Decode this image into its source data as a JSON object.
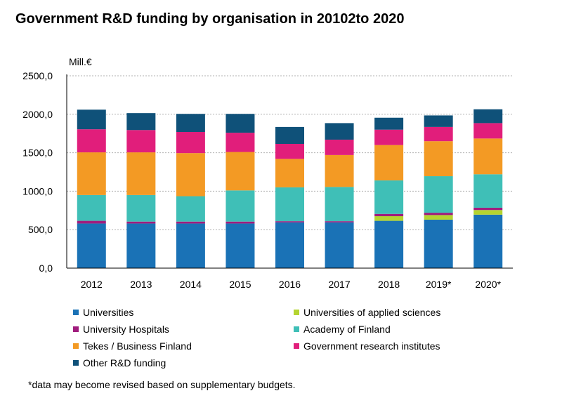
{
  "chart_data": {
    "type": "bar",
    "stacked": true,
    "title": "Government R&D funding by organisation in 20102to 2020",
    "ylabel": "Mill.€",
    "xlabel": "",
    "ylim": [
      0,
      2500
    ],
    "yticks": [
      0,
      500,
      1000,
      1500,
      2000,
      2500
    ],
    "ytick_labels": [
      "0,0",
      "500,0",
      "1000,0",
      "1500,0",
      "2000,0",
      "2500,0"
    ],
    "grid": true,
    "legend_position": "bottom",
    "categories": [
      "2012",
      "2013",
      "2014",
      "2015",
      "2016",
      "2017",
      "2018",
      "2019*",
      "2020*"
    ],
    "series": [
      {
        "name": "Universities",
        "color": "#1a72b6",
        "values": [
          580,
          580,
          580,
          580,
          595,
          595,
          615,
          630,
          695
        ]
      },
      {
        "name": "Universities of applied sciences",
        "color": "#b4d430",
        "values": [
          0,
          0,
          0,
          0,
          0,
          0,
          60,
          60,
          60
        ]
      },
      {
        "name": "University Hospitals",
        "color": "#a01c7d",
        "values": [
          35,
          25,
          25,
          25,
          15,
          15,
          30,
          30,
          30
        ]
      },
      {
        "name": "Academy of Finland",
        "color": "#3fbfb7",
        "values": [
          335,
          345,
          330,
          405,
          440,
          445,
          435,
          475,
          435
        ]
      },
      {
        "name": "Tekes / Business Finland",
        "color": "#f39a24",
        "values": [
          555,
          555,
          560,
          500,
          370,
          415,
          460,
          455,
          465
        ]
      },
      {
        "name": "Government research institutes",
        "color": "#e11e7b",
        "values": [
          300,
          290,
          275,
          250,
          195,
          200,
          200,
          185,
          200
        ]
      },
      {
        "name": "Other R&D funding",
        "color": "#0f5179",
        "values": [
          255,
          220,
          235,
          245,
          220,
          215,
          155,
          150,
          180
        ]
      }
    ]
  },
  "footnote": "*data may become revised based on supplementary budgets."
}
